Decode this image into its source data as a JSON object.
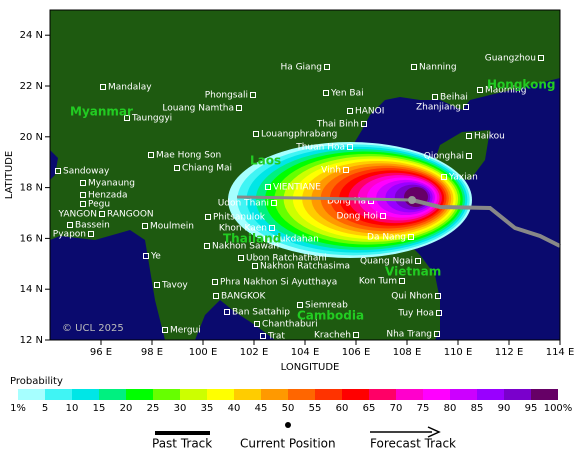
{
  "map": {
    "x_axis_title": "LONGITUDE",
    "y_axis_title": "LATITUDE",
    "copyright": "© UCL 2025",
    "lon_ticks": [
      {
        "value": 96,
        "label": "96 E"
      },
      {
        "value": 98,
        "label": "98 E"
      },
      {
        "value": 100,
        "label": "100 E"
      },
      {
        "value": 102,
        "label": "102 E"
      },
      {
        "value": 104,
        "label": "104 E"
      },
      {
        "value": 106,
        "label": "106 E"
      },
      {
        "value": 108,
        "label": "108 E"
      },
      {
        "value": 110,
        "label": "110 E"
      },
      {
        "value": 112,
        "label": "112 E"
      },
      {
        "value": 114,
        "label": "114 E"
      }
    ],
    "lat_ticks": [
      {
        "value": 12,
        "label": "12 N"
      },
      {
        "value": 14,
        "label": "14 N"
      },
      {
        "value": 16,
        "label": "16 N"
      },
      {
        "value": 18,
        "label": "18 N"
      },
      {
        "value": 20,
        "label": "20 N"
      },
      {
        "value": 22,
        "label": "22 N"
      },
      {
        "value": 24,
        "label": "24 N"
      }
    ],
    "countries": [
      "Myanmar",
      "Laos",
      "Thailand",
      "Cambodia",
      "Vietnam",
      "Hongkong"
    ],
    "cities": [
      "Guangzhou",
      "Nanning",
      "Ha Giang",
      "Yen Bai",
      "Beihai",
      "Maoming",
      "Mandalay",
      "Phongsali",
      "Louang Namtha",
      "HANOI",
      "Zhanjiang",
      "Taunggyi",
      "Thai Binh",
      "Haikou",
      "Louangphrabang",
      "Thuan Hoa",
      "Qionghai",
      "Mae Hong Son",
      "Chiang Mai",
      "Vinh",
      "Sandoway",
      "Yaxian",
      "Myanaung",
      "VIENTIANE",
      "Henzada",
      "Dong Ha",
      "Pegu",
      "Udon Thani",
      "YANGON",
      "RANGOON",
      "Dong Hoi",
      "Phitsanulok",
      "Bassein",
      "Khon Kaen",
      "Moulmein",
      "Pyapon",
      "Da Nang",
      "Nakhon Sawan",
      "Mukdahan",
      "Ye",
      "Ubon Ratchathani",
      "Quang Ngai",
      "Nakhon Ratchasima",
      "Kon Tum",
      "Phra Nakhon Si Ayutthaya",
      "Tavoy",
      "BANGKOK",
      "Qui Nhon",
      "Siemreab",
      "Ban Sattahip",
      "Tuy Hoa",
      "Chanthaburi",
      "Mergui",
      "Trat",
      "Kracheh",
      "Nha Trang"
    ]
  },
  "legend": {
    "title": "Probability",
    "colors": [
      "#a6ffff",
      "#40f4f4",
      "#00e6e6",
      "#00f080",
      "#00ff00",
      "#66ff00",
      "#ccff00",
      "#ffff00",
      "#ffcc00",
      "#ff9900",
      "#ff6600",
      "#ff3300",
      "#ff0000",
      "#ff0066",
      "#ff00cc",
      "#ff00ff",
      "#cc00ff",
      "#9900ff",
      "#7a00cc",
      "#660066"
    ],
    "labels": [
      "1%",
      "5",
      "10",
      "15",
      "20",
      "25",
      "30",
      "35",
      "40",
      "45",
      "50",
      "55",
      "60",
      "65",
      "70",
      "75",
      "80",
      "85",
      "90",
      "95",
      "100%"
    ],
    "tracks": [
      "Past Track",
      "Current Position",
      "Forecast Track"
    ]
  }
}
